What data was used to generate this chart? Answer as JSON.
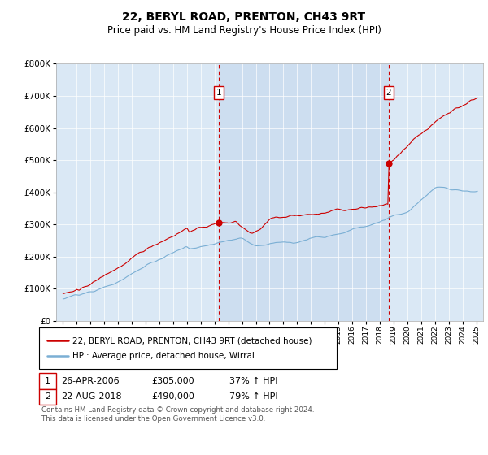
{
  "title": "22, BERYL ROAD, PRENTON, CH43 9RT",
  "subtitle": "Price paid vs. HM Land Registry's House Price Index (HPI)",
  "bg_color": "#dce9f5",
  "plot_bg_color": "#dae8f5",
  "highlight_color": "#c8dcf0",
  "white_bg": "#ffffff",
  "red_color": "#cc0000",
  "blue_color": "#7bafd4",
  "sale1_date": "26-APR-2006",
  "sale1_price": 305000,
  "sale1_label": "37% ↑ HPI",
  "sale2_date": "22-AUG-2018",
  "sale2_price": 490000,
  "sale2_label": "79% ↑ HPI",
  "sale1_x": 2006.32,
  "sale2_x": 2018.64,
  "ylim": [
    0,
    800000
  ],
  "yticks": [
    0,
    100000,
    200000,
    300000,
    400000,
    500000,
    600000,
    700000,
    800000
  ],
  "xlim": [
    1994.5,
    2025.5
  ],
  "legend1": "22, BERYL ROAD, PRENTON, CH43 9RT (detached house)",
  "legend2": "HPI: Average price, detached house, Wirral",
  "footnote": "Contains HM Land Registry data © Crown copyright and database right 2024.\nThis data is licensed under the Open Government Licence v3.0."
}
